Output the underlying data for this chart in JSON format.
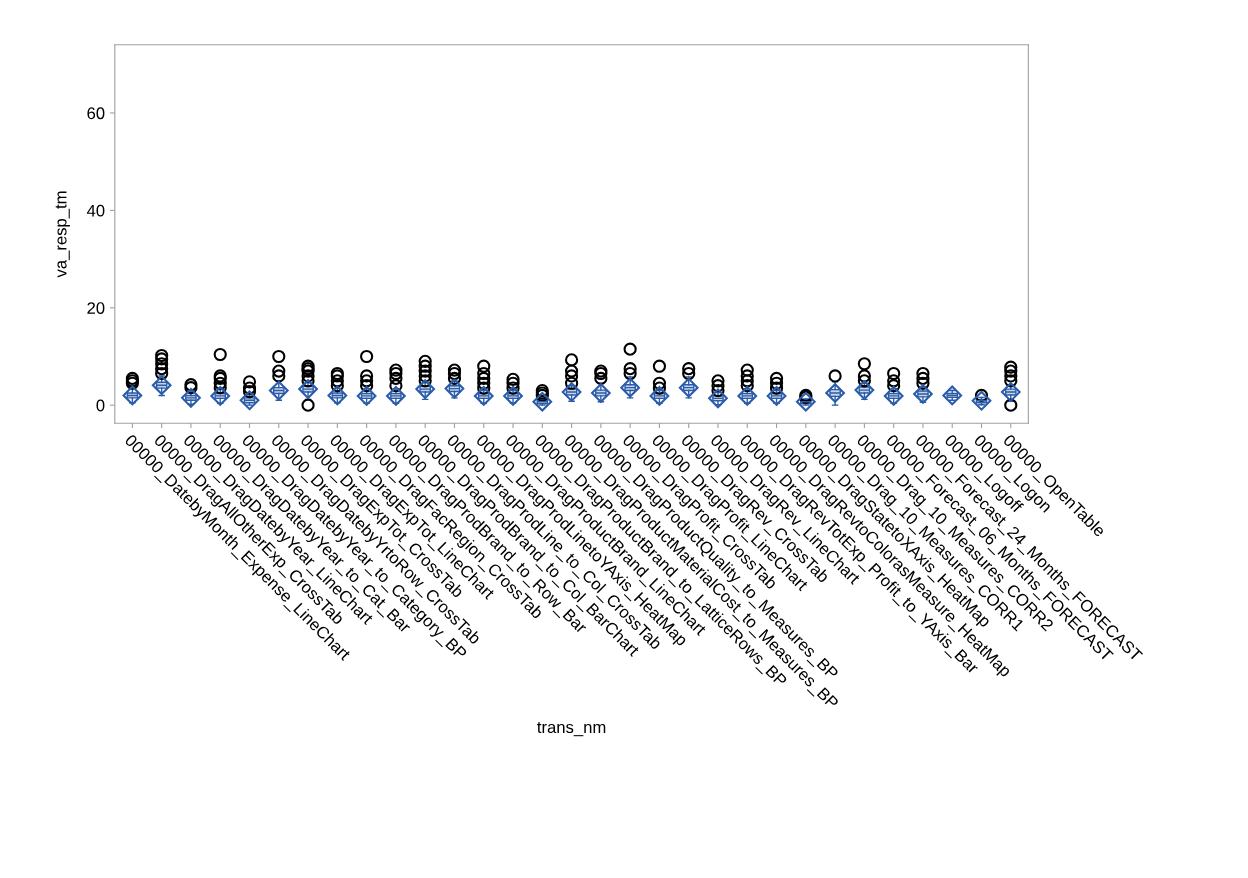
{
  "chart_data": {
    "type": "box",
    "xlabel": "trans_nm",
    "ylabel": "va_resp_tm",
    "ylim": [
      -3.7,
      74
    ],
    "yticks": [
      0,
      20,
      40,
      60
    ],
    "grid": false,
    "color": "#2a5caa",
    "categories": [
      "00000_DatebyMonth_Expense_LineChart",
      "00000_DragAllOtherExp_CrossTab",
      "00000_DragDatebyYear_LineChart",
      "00000_DragDatebyYear_to_Cat_Bar",
      "00000_DragDatebyYear_to_Category_BP",
      "00000_DragDatebyYrtoRow_CrossTab",
      "00000_DragExpTot_CrossTab",
      "00000_DragExpTot_LineChart",
      "00000_DragFacRegion_CrossTab",
      "00000_DragProdBrand_to_Row_Bar",
      "00000_DragProdBrand_to_Col_BarChart",
      "00000_DragProdLine_to_Col_CrossTab",
      "00000_DragProdLinetoYAxis_HeatMap",
      "00000_DragProductBrand_LineChart",
      "00000_DragProductBrand_to_LatticeRows_BP",
      "00000_DragProductMaterialCost_to_Measures_BP",
      "00000_DragProductQuality_to_Measures_BP",
      "00000_DragProfit_CrossTab",
      "00000_DragProfit_LineChart",
      "00000_DragRev_CrossTab",
      "00000_DragRev_LineChart",
      "00000_DragRevTotExp_Profit_to_YAxis_Bar",
      "00000_DragRevtoColorasMeasure_HeatMap",
      "00000_DragStatetoXAxis_HeatMap",
      "00000_Drag_10_Measures_CORR1",
      "00000_Drag_10_Measures_CORR2",
      "00000_Forecast_06_Months_FORECAST",
      "00000_Forecast_24_Months_FORECAST",
      "00000_Logoff",
      "00000_Logon",
      "00000_OpenTable"
    ],
    "boxes": [
      {
        "low": 0.5,
        "q1": 1.5,
        "median": 2.0,
        "q3": 2.5,
        "high": 3.8,
        "mean": 2.0,
        "outliers": [
          4.5,
          5.0,
          5.5
        ]
      },
      {
        "low": 2.0,
        "q1": 3.5,
        "median": 4.1,
        "q3": 4.7,
        "high": 6.0,
        "mean": 4.1,
        "outliers": [
          6.5,
          7.5,
          8.5,
          9.5,
          10.2
        ]
      },
      {
        "low": 0.2,
        "q1": 1.0,
        "median": 1.5,
        "q3": 2.0,
        "high": 3.0,
        "mean": 1.5,
        "outliers": [
          3.6,
          4.2
        ]
      },
      {
        "low": 0.4,
        "q1": 1.4,
        "median": 1.9,
        "q3": 2.4,
        "high": 3.2,
        "mean": 1.9,
        "outliers": [
          3.6,
          4.5,
          5.5,
          6.0,
          10.4
        ]
      },
      {
        "low": 0,
        "q1": 0.5,
        "median": 1.0,
        "q3": 1.5,
        "high": 2.2,
        "mean": 1.0,
        "outliers": [
          2.8,
          3.5,
          4.8
        ]
      },
      {
        "low": 1.0,
        "q1": 2.4,
        "median": 3.0,
        "q3": 3.6,
        "high": 5.0,
        "mean": 3.0,
        "outliers": [
          6.0,
          7.0,
          10.0
        ]
      },
      {
        "low": 1.2,
        "q1": 2.7,
        "median": 3.3,
        "q3": 3.9,
        "high": 4.6,
        "mean": 3.3,
        "outliers": [
          0.0,
          5.0,
          6.0,
          7.0,
          7.5,
          8.0
        ]
      },
      {
        "low": 0.5,
        "q1": 1.5,
        "median": 2.0,
        "q3": 2.5,
        "high": 3.5,
        "mean": 2.0,
        "outliers": [
          4.0,
          5.0,
          6.0,
          6.5
        ]
      },
      {
        "low": 0.4,
        "q1": 1.4,
        "median": 1.9,
        "q3": 2.4,
        "high": 3.4,
        "mean": 1.9,
        "outliers": [
          4.0,
          5.0,
          6.0,
          10.0
        ]
      },
      {
        "low": 0.4,
        "q1": 1.4,
        "median": 1.9,
        "q3": 2.4,
        "high": 3.4,
        "mean": 1.9,
        "outliers": [
          4.0,
          5.5,
          6.5,
          7.2
        ]
      },
      {
        "low": 1.2,
        "q1": 2.7,
        "median": 3.3,
        "q3": 3.9,
        "high": 4.6,
        "mean": 3.3,
        "outliers": [
          5.0,
          6.0,
          7.0,
          8.0,
          9.0
        ]
      },
      {
        "low": 1.5,
        "q1": 2.8,
        "median": 3.4,
        "q3": 4.0,
        "high": 5.0,
        "mean": 3.4,
        "outliers": [
          5.5,
          6.5,
          7.2
        ]
      },
      {
        "low": 0.4,
        "q1": 1.4,
        "median": 1.9,
        "q3": 2.4,
        "high": 3.0,
        "mean": 1.9,
        "outliers": [
          3.5,
          4.5,
          5.5,
          6.5,
          8.0
        ]
      },
      {
        "low": 0.4,
        "q1": 1.4,
        "median": 1.9,
        "q3": 2.4,
        "high": 3.0,
        "mean": 1.9,
        "outliers": [
          3.5,
          4.5,
          5.3
        ]
      },
      {
        "low": 0,
        "q1": 0.3,
        "median": 0.7,
        "q3": 1.1,
        "high": 1.4,
        "mean": 0.7,
        "outliers": [
          2.0,
          2.5,
          3.0
        ]
      },
      {
        "low": 0.8,
        "q1": 2.1,
        "median": 2.7,
        "q3": 3.3,
        "high": 4.0,
        "mean": 2.7,
        "outliers": [
          4.5,
          6.0,
          7.0,
          9.3
        ]
      },
      {
        "low": 0.7,
        "q1": 1.9,
        "median": 2.5,
        "q3": 3.1,
        "high": 4.5,
        "mean": 2.5,
        "outliers": [
          5.5,
          6.5,
          7.0
        ]
      },
      {
        "low": 1.5,
        "q1": 3.0,
        "median": 3.6,
        "q3": 4.2,
        "high": 5.8,
        "mean": 3.6,
        "outliers": [
          6.5,
          7.5,
          11.5
        ]
      },
      {
        "low": 0.4,
        "q1": 1.4,
        "median": 1.9,
        "q3": 2.4,
        "high": 3.0,
        "mean": 1.9,
        "outliers": [
          3.5,
          4.5,
          8.0
        ]
      },
      {
        "low": 1.5,
        "q1": 3.0,
        "median": 3.6,
        "q3": 4.2,
        "high": 5.8,
        "mean": 3.6,
        "outliers": [
          6.5,
          7.5
        ]
      },
      {
        "low": 0.1,
        "q1": 0.9,
        "median": 1.4,
        "q3": 1.9,
        "high": 2.6,
        "mean": 1.4,
        "outliers": [
          3.0,
          4.0,
          5.0
        ]
      },
      {
        "low": 0.4,
        "q1": 1.4,
        "median": 1.9,
        "q3": 2.4,
        "high": 3.4,
        "mean": 1.9,
        "outliers": [
          4.0,
          5.0,
          6.0,
          7.2
        ]
      },
      {
        "low": 0.4,
        "q1": 1.4,
        "median": 1.9,
        "q3": 2.4,
        "high": 3.0,
        "mean": 1.9,
        "outliers": [
          3.5,
          4.5,
          5.5
        ]
      },
      {
        "low": 0,
        "q1": 0.3,
        "median": 0.7,
        "q3": 1.1,
        "high": 1.3,
        "mean": 0.7,
        "outliers": [
          1.6,
          2.0
        ]
      },
      {
        "low": 0,
        "q1": 1.8,
        "median": 2.5,
        "q3": 3.2,
        "high": 4.8,
        "mean": 2.5,
        "outliers": [
          6.0
        ]
      },
      {
        "low": 1.2,
        "q1": 2.5,
        "median": 3.1,
        "q3": 3.7,
        "high": 4.5,
        "mean": 3.1,
        "outliers": [
          5.0,
          6.0,
          8.5
        ]
      },
      {
        "low": 0.4,
        "q1": 1.4,
        "median": 1.9,
        "q3": 2.4,
        "high": 3.4,
        "mean": 1.9,
        "outliers": [
          4.0,
          5.0,
          6.5
        ]
      },
      {
        "low": 0.6,
        "q1": 1.7,
        "median": 2.3,
        "q3": 2.9,
        "high": 3.8,
        "mean": 2.3,
        "outliers": [
          4.5,
          5.5,
          6.5
        ]
      },
      {
        "low": 1.0,
        "q1": 1.6,
        "median": 2.0,
        "q3": 2.4,
        "high": 3.0,
        "mean": 2.0
      },
      {
        "low": 0.1,
        "q1": 0.5,
        "median": 0.9,
        "q3": 1.2,
        "high": 1.6,
        "mean": 0.9,
        "outliers": [
          2.0
        ]
      },
      {
        "low": 0.8,
        "q1": 2.1,
        "median": 2.7,
        "q3": 3.3,
        "high": 4.2,
        "mean": 2.7,
        "outliers": [
          0.0,
          5.0,
          6.0,
          7.0,
          7.8
        ]
      }
    ]
  }
}
